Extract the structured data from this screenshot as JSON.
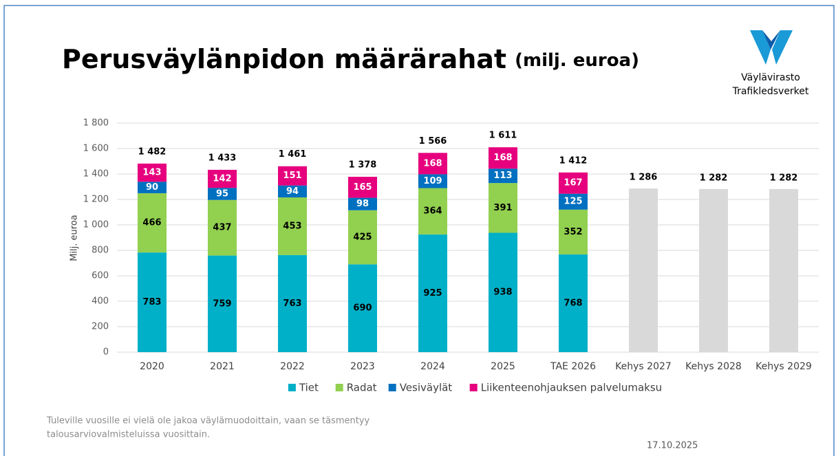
{
  "header": {
    "title": "Perusväylänpidon määrärahat",
    "subtitle": "(milj. euroa)",
    "logo_line1": "Väylävirasto",
    "logo_line2": "Trafikledsverket"
  },
  "chart_data": {
    "type": "stacked_bar",
    "y_label": "Milj. euroa",
    "categories": [
      "2020",
      "2021",
      "2022",
      "2023",
      "2024",
      "2025",
      "TAE 2026",
      "Kehys 2027",
      "Kehys 2028",
      "Kehys 2029"
    ],
    "series": [
      {
        "name": "Tiet",
        "color": "#00b0c8",
        "label_color": "#000000",
        "values": [
          783,
          759,
          763,
          690,
          925,
          938,
          768,
          null,
          null,
          null
        ]
      },
      {
        "name": "Radat",
        "color": "#92d050",
        "label_color": "#000000",
        "values": [
          466,
          437,
          453,
          425,
          364,
          391,
          352,
          null,
          null,
          null
        ]
      },
      {
        "name": "Vesiväylät",
        "color": "#0070c0",
        "label_color": "#ffffff",
        "values": [
          90,
          95,
          94,
          98,
          109,
          113,
          125,
          null,
          null,
          null
        ]
      },
      {
        "name": "Liikenteenohjauksen palvelumaksu",
        "color": "#e6007e",
        "label_color": "#ffffff",
        "values": [
          143,
          142,
          151,
          165,
          168,
          168,
          167,
          null,
          null,
          null
        ]
      },
      {
        "color": "#d9d9d9",
        "label_color": "#000000",
        "values": [
          null,
          null,
          null,
          null,
          null,
          null,
          null,
          1286,
          1282,
          1282
        ],
        "value_labels": [
          null,
          null,
          null,
          null,
          null,
          null,
          null,
          "1 286",
          "1 282",
          "1 282"
        ]
      }
    ],
    "totals": {
      "values": [
        1482,
        1433,
        1461,
        1378,
        1566,
        1611,
        1412,
        null,
        null,
        null
      ],
      "value_labels": [
        "1 482",
        "1 433",
        "1 461",
        "1 378",
        "1 566",
        "1 611",
        "1 412",
        null,
        null,
        null
      ]
    },
    "ylim": [
      0,
      1800
    ],
    "yticks": [
      0,
      200,
      400,
      600,
      800,
      {
        "value": 1000,
        "label": "1 000"
      },
      {
        "value": 1200,
        "label": "1 200"
      },
      {
        "value": 1400,
        "label": "1 400"
      },
      {
        "value": 1600,
        "label": "1 600"
      },
      {
        "value": 1800,
        "label": "1 800"
      }
    ],
    "grid": true,
    "legend": "bottom"
  },
  "footer": {
    "note_line1": "Tuleville vuosille ei vielä ole jakoa väylämuodoittain, vaan se täsmentyy",
    "note_line2": "talousarviovalmisteluissa vuosittain.",
    "date": "17.10.2025"
  }
}
